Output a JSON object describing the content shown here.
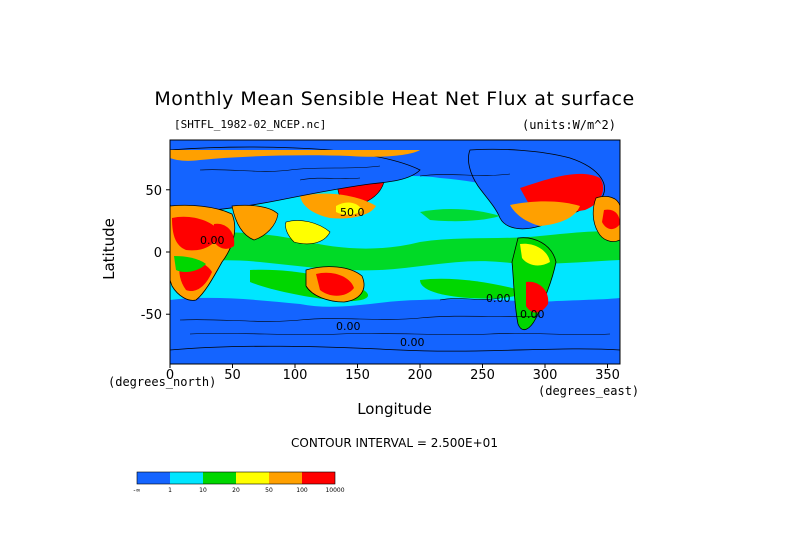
{
  "title": "Monthly Mean Sensible Heat Net Flux at surface",
  "subtitle": "[SHTFL_1982-02_NCEP.nc]",
  "units": "(units:W/m^2)",
  "x_unit_label": "(degrees_north)",
  "x_unit_label_right": "(degrees_east)",
  "xlabel": "Longitude",
  "ylabel": "Latitude",
  "contour_interval": "CONTOUR INTERVAL = 2.500E+01",
  "colors": {
    "bin1": "#1464ff",
    "bin2": "#00e6ff",
    "bin3": "#00d700",
    "bin4": "#ffff00",
    "bin5": "#ffa000",
    "bin6": "#ff0000"
  },
  "chart_data": {
    "type": "heatmap",
    "title": "Monthly Mean Sensible Heat Net Flux at surface",
    "xlabel": "Longitude",
    "ylabel": "Latitude",
    "xlim": [
      0,
      360
    ],
    "ylim": [
      -90,
      90
    ],
    "xticks": [
      "0",
      "50",
      "100",
      "150",
      "200",
      "250",
      "300",
      "350"
    ],
    "yticks": [
      "50",
      "0",
      "-50"
    ],
    "xtick_values": [
      0,
      50,
      100,
      150,
      200,
      250,
      300,
      350
    ],
    "ytick_values": [
      50,
      0,
      -50
    ],
    "colorbar": {
      "labels": [
        "-∞",
        "1",
        "10",
        "20",
        "50",
        "100",
        "10000"
      ],
      "colors": [
        "#1464ff",
        "#00e6ff",
        "#00d700",
        "#ffff00",
        "#ffa000",
        "#ff0000"
      ]
    },
    "contour_labels": [
      "50.0",
      "0.00",
      "0.00",
      "0.00",
      "0.00",
      "0.00"
    ]
  }
}
